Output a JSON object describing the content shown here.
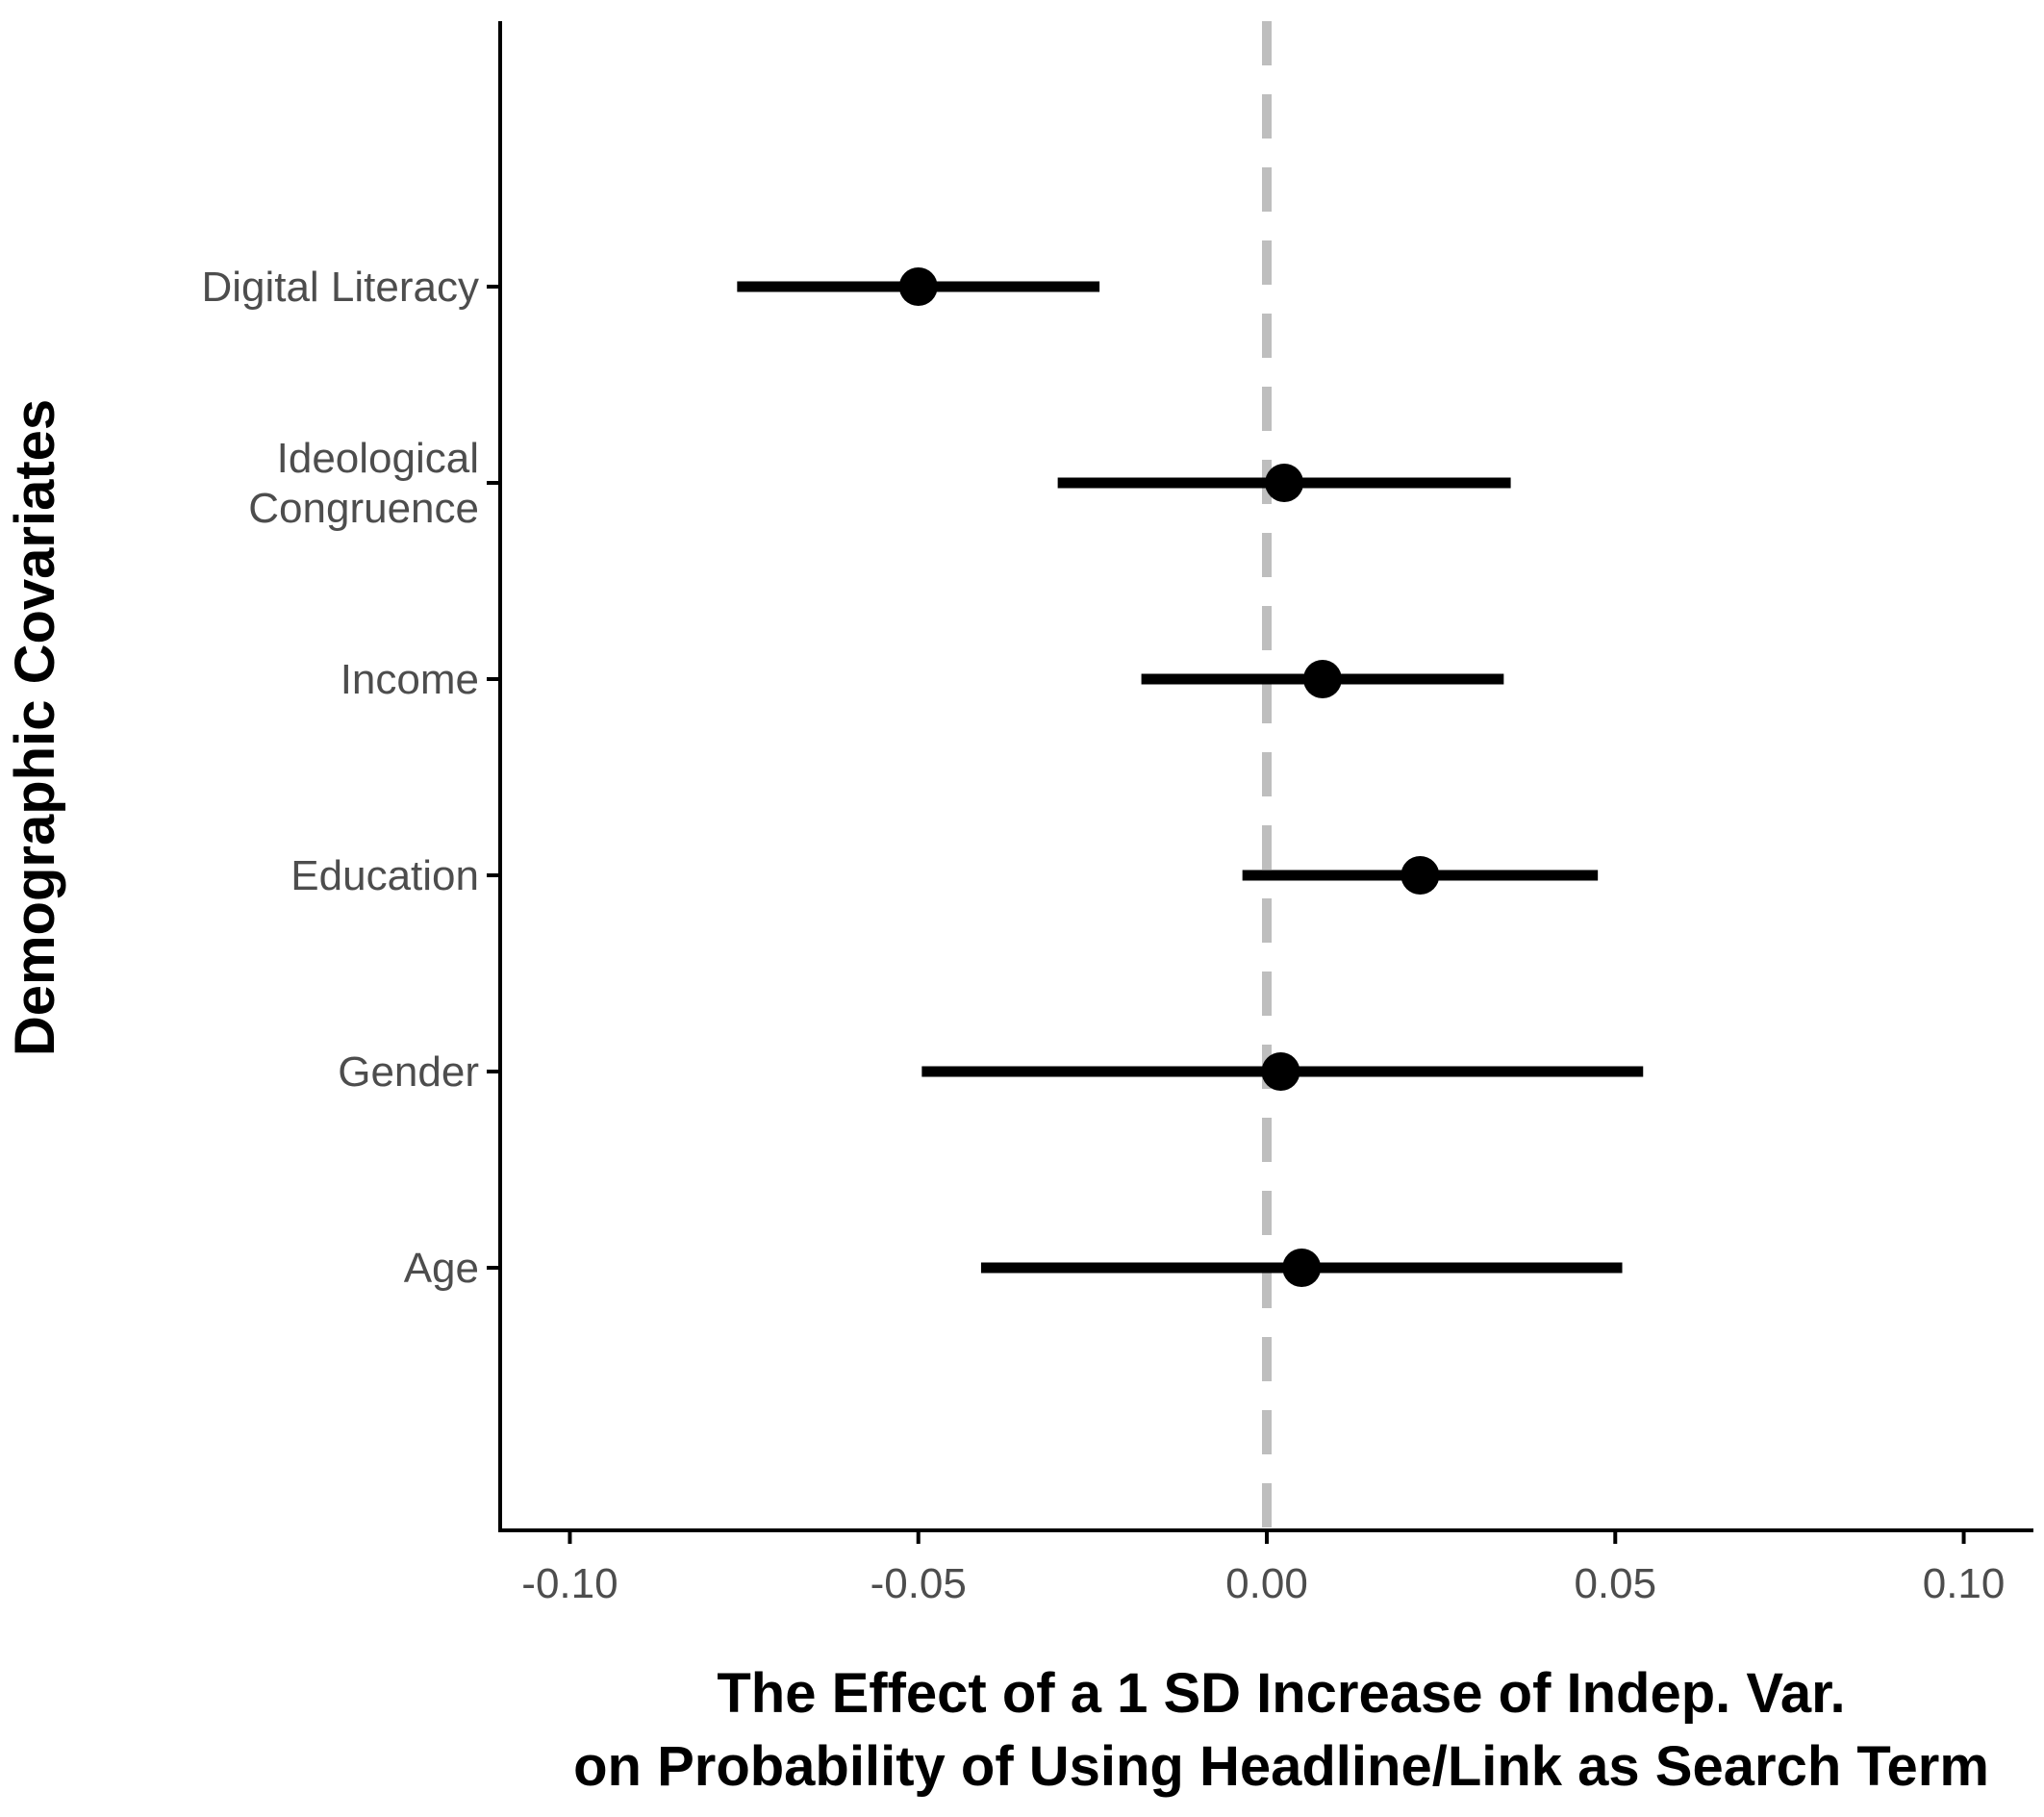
{
  "chart_data": {
    "type": "coefficient-plot",
    "xlabel_lines": [
      "The Effect of a 1 SD Increase of Indep. Var.",
      "on Probability of Using Headline/Link as Search Term"
    ],
    "ylabel": "Demographic Covariates",
    "xlim": [
      -0.11,
      0.11
    ],
    "x_ticks": [
      -0.1,
      -0.05,
      0.0,
      0.05,
      0.1
    ],
    "x_tick_labels": [
      "-0.10",
      "-0.05",
      "0.00",
      "0.05",
      "0.10"
    ],
    "reference_line": {
      "x": 0,
      "style": "dashed",
      "color": "#bebebe"
    },
    "colors": {
      "point": "#000000",
      "interval": "#000000",
      "axis": "#000000"
    },
    "points": [
      {
        "label_lines": [
          "Digital Literacy"
        ],
        "estimate": -0.05,
        "lower": -0.076,
        "upper": -0.024
      },
      {
        "label_lines": [
          "Ideological",
          "Congruence"
        ],
        "estimate": 0.0025,
        "lower": -0.03,
        "upper": 0.035
      },
      {
        "label_lines": [
          "Income"
        ],
        "estimate": 0.008,
        "lower": -0.018,
        "upper": 0.034
      },
      {
        "label_lines": [
          "Education"
        ],
        "estimate": 0.022,
        "lower": -0.0035,
        "upper": 0.0475
      },
      {
        "label_lines": [
          "Gender"
        ],
        "estimate": 0.002,
        "lower": -0.0495,
        "upper": 0.054
      },
      {
        "label_lines": [
          "Age"
        ],
        "estimate": 0.005,
        "lower": -0.041,
        "upper": 0.051
      }
    ]
  }
}
